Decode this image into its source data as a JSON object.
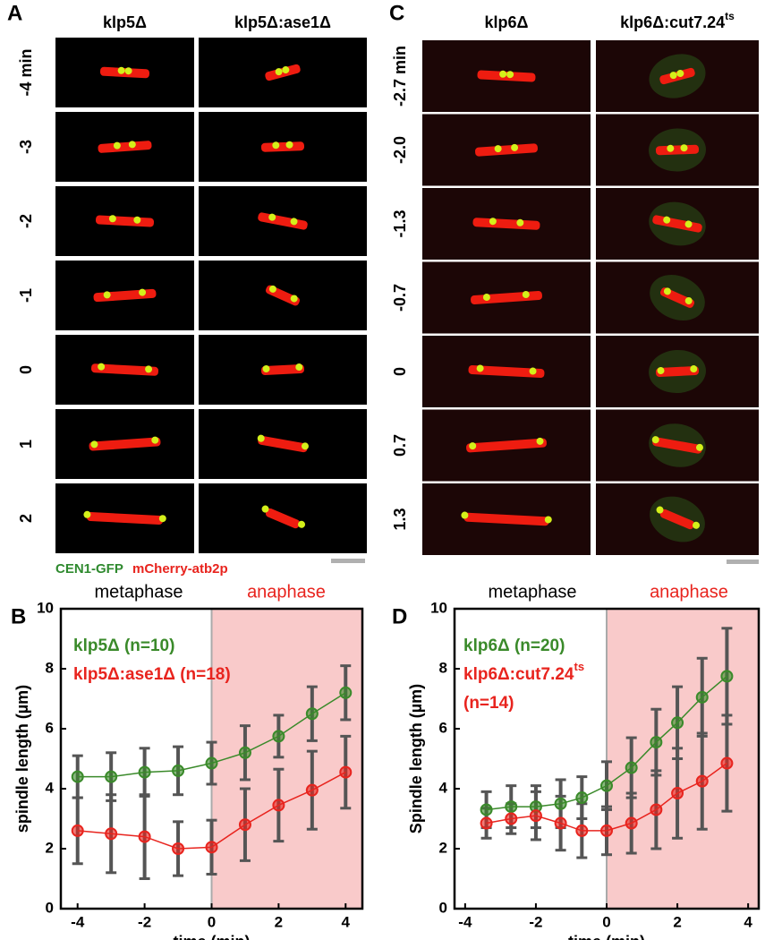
{
  "panels": [
    {
      "label": "A",
      "columns": [
        {
          "text": "klp5Δ"
        },
        {
          "text": "klp5Δ:ase1Δ"
        }
      ],
      "rows": [
        "-4 min",
        "-3",
        "-2",
        "-1",
        "0",
        "1",
        "2"
      ]
    },
    {
      "label": "C",
      "columns": [
        {
          "text": "klp6Δ"
        },
        {
          "text": "klp6Δ:cut7.24",
          "sup": "ts"
        }
      ],
      "rows": [
        "-2.7 min",
        "-2.0",
        "-1.3",
        "-0.7",
        "0",
        "0.7",
        "1.3"
      ]
    }
  ],
  "caption": {
    "green": "CEN1-GFP",
    "red": "mCherry-atb2p"
  },
  "chart_data": [
    {
      "type": "line",
      "label": "B",
      "xlabel": "time (min)",
      "ylabel": "spindle length (µm)",
      "annotations": [
        {
          "text": "metaphase",
          "color": "#000000"
        },
        {
          "text": "anaphase",
          "color": "#e8241e"
        }
      ],
      "shade_from": 0,
      "shade_color": "#f9caca",
      "xlim": [
        -4.5,
        4.5
      ],
      "xticks": [
        -4,
        -2,
        0,
        2,
        4
      ],
      "ylim": [
        0,
        10
      ],
      "yticks": [
        0,
        2,
        4,
        6,
        8,
        10
      ],
      "x": [
        -4,
        -3,
        -2,
        -1,
        0,
        1,
        2,
        3,
        4
      ],
      "series": [
        {
          "name": "klp5Δ (n=10)",
          "color": "#3a8a2a",
          "values": [
            4.4,
            4.4,
            4.55,
            4.6,
            4.85,
            5.2,
            5.75,
            6.5,
            7.2
          ],
          "errors": [
            0.7,
            0.8,
            0.8,
            0.8,
            0.7,
            0.9,
            0.7,
            0.9,
            0.9
          ]
        },
        {
          "name": "klp5Δ:ase1Δ (n=18)",
          "color": "#e8241e",
          "values": [
            2.6,
            2.5,
            2.4,
            2.0,
            2.05,
            2.8,
            3.45,
            3.95,
            4.55
          ],
          "errors": [
            1.1,
            1.3,
            1.4,
            0.9,
            0.9,
            1.2,
            1.2,
            1.3,
            1.2
          ]
        }
      ]
    },
    {
      "type": "line",
      "label": "D",
      "xlabel": "time (min)",
      "ylabel": "Spindle length (µm)",
      "annotations": [
        {
          "text": "metaphase",
          "color": "#000000"
        },
        {
          "text": "anaphase",
          "color": "#e8241e"
        }
      ],
      "shade_from": 0,
      "shade_color": "#f9caca",
      "xlim": [
        -4.3,
        4.3
      ],
      "xticks": [
        -4,
        -2,
        0,
        2,
        4
      ],
      "ylim": [
        0,
        10
      ],
      "yticks": [
        0,
        2,
        4,
        6,
        8,
        10
      ],
      "x": [
        -3.4,
        -2.7,
        -2.0,
        -1.3,
        -0.7,
        0,
        0.7,
        1.4,
        2.0,
        2.7,
        3.4
      ],
      "series": [
        {
          "name": "klp6Δ (n=20)",
          "color": "#3a8a2a",
          "values": [
            3.3,
            3.4,
            3.4,
            3.5,
            3.7,
            4.1,
            4.7,
            5.55,
            6.2,
            7.05,
            7.75
          ],
          "errors": [
            0.6,
            0.7,
            0.7,
            0.8,
            0.7,
            0.8,
            1.0,
            1.1,
            1.2,
            1.3,
            1.6
          ]
        },
        {
          "name": "klp6Δ:cut7.24",
          "name_sup": "ts",
          "name_note": "(n=14)",
          "color": "#e8241e",
          "values": [
            2.85,
            3.0,
            3.1,
            2.85,
            2.6,
            2.6,
            2.85,
            3.3,
            3.85,
            4.25,
            4.85
          ],
          "errors": [
            0.5,
            0.5,
            0.8,
            0.9,
            0.9,
            0.8,
            1.0,
            1.3,
            1.5,
            1.6,
            1.6
          ]
        }
      ]
    }
  ]
}
